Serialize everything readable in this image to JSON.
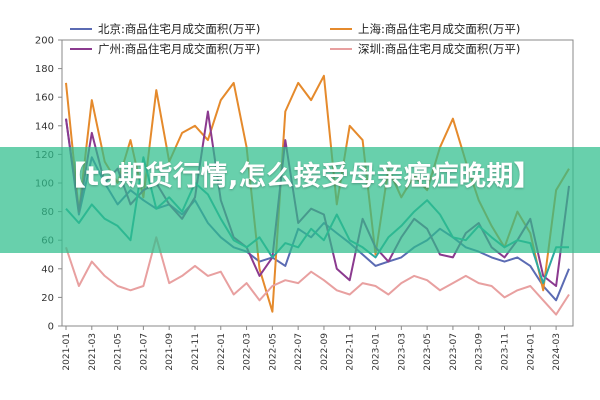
{
  "chart_data": {
    "type": "line",
    "title": "",
    "xlabel": "",
    "ylabel": "",
    "ylim": [
      0,
      200
    ],
    "yticks": [
      0,
      20,
      40,
      60,
      80,
      100,
      120,
      140,
      160,
      180,
      200
    ],
    "grid": false,
    "legend_position": "top",
    "x": [
      "2021-01",
      "2021-02",
      "2021-03",
      "2021-04",
      "2021-05",
      "2021-06",
      "2021-07",
      "2021-08",
      "2021-09",
      "2021-10",
      "2021-11",
      "2021-12",
      "2022-01",
      "2022-02",
      "2022-03",
      "2022-04",
      "2022-05",
      "2022-06",
      "2022-07",
      "2022-08",
      "2022-09",
      "2022-10",
      "2022-11",
      "2022-12",
      "2023-01",
      "2023-02",
      "2023-03",
      "2023-04",
      "2023-05",
      "2023-06",
      "2023-07",
      "2023-08",
      "2023-09",
      "2023-10",
      "2023-11",
      "2023-12",
      "2024-01",
      "2024-02",
      "2024-03",
      "2024-04"
    ],
    "xtick_labels": [
      "2021-01",
      "2021-03",
      "2021-05",
      "2021-07",
      "2021-09",
      "2021-11",
      "2022-01",
      "2022-03",
      "2022-05",
      "2022-07",
      "2022-09",
      "2022-11",
      "2023-01",
      "2023-03",
      "2023-05",
      "2023-07",
      "2023-09",
      "2023-11",
      "2024-01",
      "2024-03"
    ],
    "series": [
      {
        "name": "北京:商品住宅月成交面积(万平)",
        "color": "#5b6bb3",
        "values": [
          145,
          78,
          118,
          100,
          85,
          95,
          88,
          82,
          85,
          78,
          88,
          72,
          62,
          55,
          52,
          45,
          48,
          42,
          68,
          62,
          72,
          65,
          58,
          50,
          42,
          45,
          48,
          55,
          60,
          68,
          62,
          55,
          52,
          48,
          45,
          48,
          42,
          28,
          18,
          40
        ]
      },
      {
        "name": "上海:商品住宅月成交面积(万平)",
        "color": "#e58a2c",
        "values": [
          170,
          80,
          158,
          115,
          100,
          130,
          90,
          165,
          115,
          135,
          140,
          130,
          158,
          170,
          125,
          40,
          10,
          150,
          170,
          158,
          175,
          85,
          140,
          130,
          50,
          110,
          90,
          105,
          95,
          125,
          145,
          115,
          88,
          70,
          55,
          80,
          65,
          25,
          95,
          110
        ]
      },
      {
        "name": "广州:商品住宅月成交面积(万平)",
        "color": "#8b3a8f",
        "values": [
          145,
          80,
          135,
          100,
          110,
          85,
          95,
          100,
          85,
          75,
          90,
          150,
          88,
          62,
          55,
          35,
          48,
          130,
          72,
          82,
          78,
          40,
          32,
          75,
          55,
          45,
          62,
          75,
          68,
          50,
          48,
          65,
          72,
          55,
          48,
          60,
          75,
          35,
          28,
          98
        ]
      },
      {
        "name": "深圳:商品住宅月成交面积(万平)",
        "color": "#e8a0a0",
        "values": [
          55,
          28,
          45,
          35,
          28,
          25,
          28,
          62,
          30,
          35,
          42,
          35,
          38,
          22,
          30,
          18,
          28,
          32,
          30,
          38,
          32,
          25,
          22,
          30,
          28,
          22,
          30,
          35,
          32,
          25,
          30,
          35,
          30,
          28,
          20,
          25,
          28,
          18,
          8,
          22
        ]
      },
      {
        "name": "",
        "color": "#2ea9a0",
        "values": [
          82,
          72,
          85,
          75,
          70,
          60,
          118,
          82,
          90,
          80,
          100,
          92,
          75,
          60,
          55,
          62,
          48,
          58,
          55,
          68,
          60,
          78,
          60,
          55,
          48,
          62,
          70,
          80,
          88,
          78,
          62,
          60,
          70,
          62,
          55,
          60,
          58,
          30,
          55,
          55
        ]
      }
    ]
  },
  "banner": {
    "text": "【ta期货行情,怎么接受母亲癌症晚期】"
  }
}
